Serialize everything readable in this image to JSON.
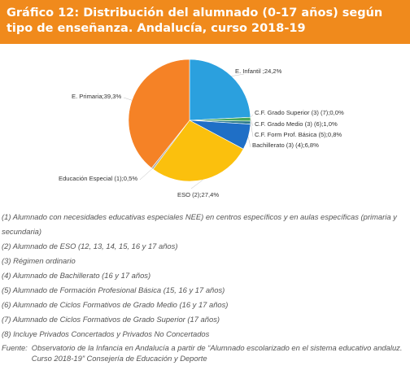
{
  "header": {
    "title": "Gráfico 12: Distribución del alumnado (0-17 años) según tipo de enseñanza. Andalucía, curso 2018-19"
  },
  "colors": {
    "header_bg": "#f08a1c",
    "header_text": "#ffffff"
  },
  "chart_data": {
    "type": "pie",
    "title": "",
    "slices": [
      {
        "label": "E. Infantil ;24,2%",
        "name": "E. Infantil",
        "value": 24.2,
        "color": "#2ba0de"
      },
      {
        "label": "C.F. Grado Superior (3) (7);0,0%",
        "name": "C.F. Grado Superior (3) (7)",
        "value": 0.0,
        "color": "#6a8fc7"
      },
      {
        "label": "C.F. Grado Medio (3) (6);1,0%",
        "name": "C.F. Grado Medio (3) (6)",
        "value": 1.0,
        "color": "#49a85a"
      },
      {
        "label": "C.F. Form Prof. Básica (5);0,8%",
        "name": "C.F. Form Prof. Básica (5)",
        "value": 0.8,
        "color": "#2a7a8e"
      },
      {
        "label": "Bachillerato (3) (4);6,8%",
        "name": "Bachillerato (3) (4)",
        "value": 6.8,
        "color": "#1f6fc6"
      },
      {
        "label": "ESO (2);27,4%",
        "name": "ESO (2)",
        "value": 27.4,
        "color": "#fbc00d"
      },
      {
        "label": "Educación Especial (1);0,5%",
        "name": "Educación Especial (1)",
        "value": 0.5,
        "color": "#a9a9a9"
      },
      {
        "label": "E. Primaria;39,3%",
        "name": "E. Primaria",
        "value": 39.3,
        "color": "#f58226"
      }
    ]
  },
  "notes": [
    "(1) Alumnado con necesidades educativas especiales NEE) en centros específicos y en aulas específicas (primaria y secundaria)",
    "(2) Alumnado de ESO (12, 13, 14, 15, 16 y 17 años)",
    "(3) Régimen ordinario",
    "(4) Alumnado de Bachillerato (16 y 17 años)",
    "(5) Alumnado de Formación Profesional Básica (15, 16 y 17 años)",
    "(6) Alumnado de Ciclos Formativos de Grado Medio (16 y 17 años)",
    "(7) Alumnado de Ciclos Formativos de Grado Superior (17 años)",
    "(8) Incluye Privados Concertados y Privados No Concertados"
  ],
  "source": {
    "label": "Fuente:",
    "text": "Observatorio de la Infancia en Andalucía a partir de “Alumnado escolarizado en el sistema educativo andaluz. Curso 2018-19” Consejería de Educación y Deporte"
  }
}
